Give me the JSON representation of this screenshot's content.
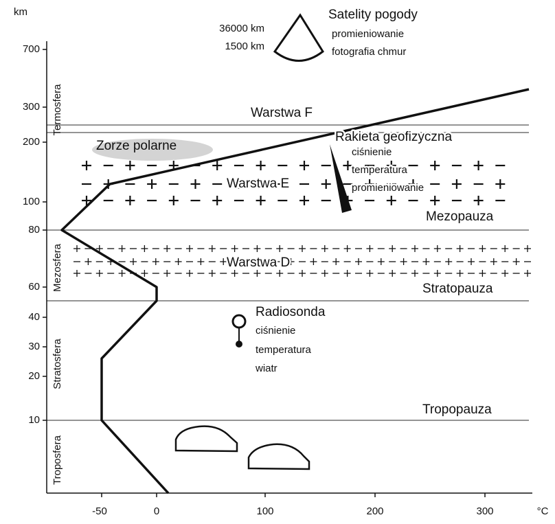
{
  "axes": {
    "y_unit": "km",
    "x_unit": "°C",
    "y_ticks": [
      "700",
      "300",
      "200",
      "100",
      "80",
      "60",
      "40",
      "30",
      "20",
      "10"
    ],
    "x_ticks": [
      "-50",
      "0",
      "100",
      "200",
      "300"
    ]
  },
  "layers": [
    "Termosfera",
    "Mezosfera",
    "Stratosfera",
    "Troposfera"
  ],
  "satellites": {
    "title": "Satelity pogody",
    "items": [
      "promieniowanie",
      "fotografia chmur"
    ],
    "heights": [
      "36000 km",
      "1500 km"
    ]
  },
  "rocket": {
    "title": "Rakieta geofizyczna",
    "items": [
      "ciśnienie",
      "temperatura",
      "promieniowanie"
    ]
  },
  "radiosonde": {
    "title": "Radiosonda",
    "items": [
      "ciśnienie",
      "temperatura",
      "wiatr"
    ]
  },
  "regions": {
    "layer_f": "Warstwa F",
    "aurora": "Zorze polarne",
    "layer_e": "Warstwa E",
    "layer_d": "Warstwa D"
  },
  "boundaries": {
    "mesopause": "Mezopauza",
    "stratopause": "Stratopauza",
    "tropopause": "Tropopauza"
  }
}
